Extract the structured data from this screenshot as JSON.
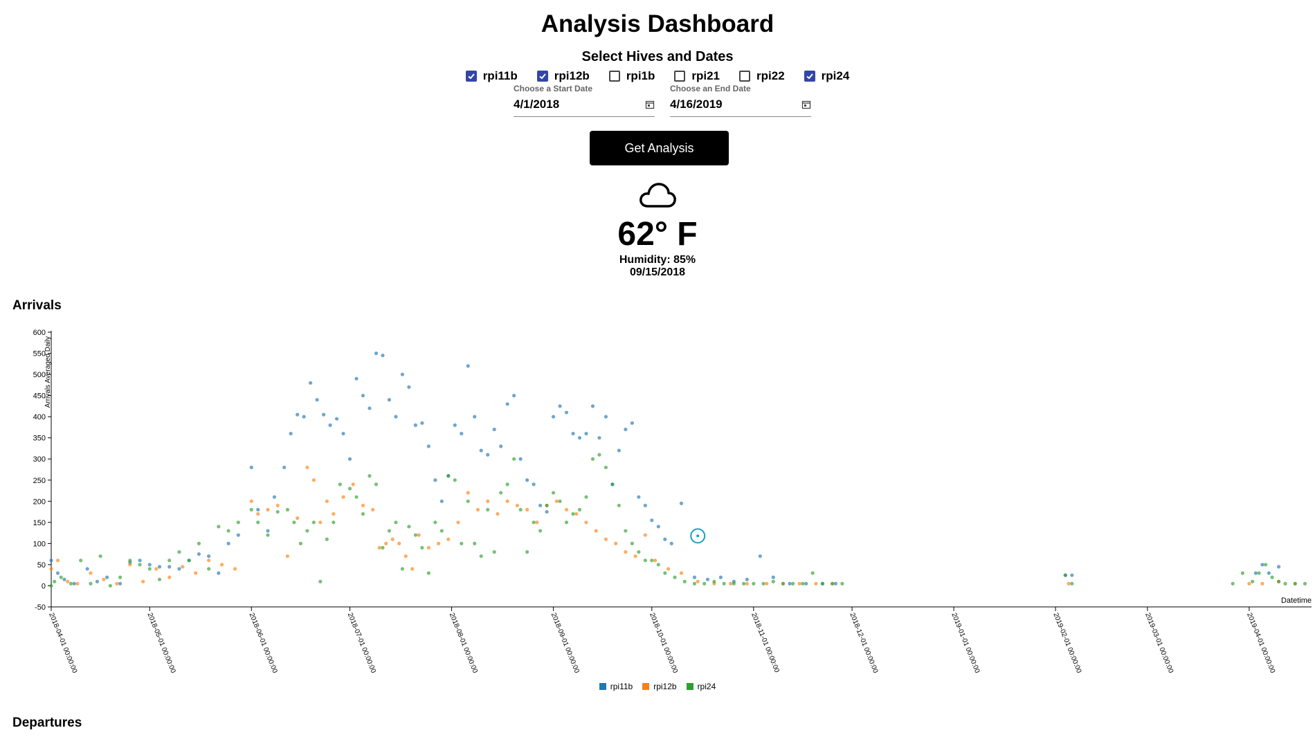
{
  "header": {
    "title": "Analysis Dashboard",
    "subtitle": "Select Hives and Dates"
  },
  "hives": [
    {
      "label": "rpi11b",
      "checked": true
    },
    {
      "label": "rpi12b",
      "checked": true
    },
    {
      "label": "rpi1b",
      "checked": false
    },
    {
      "label": "rpi21",
      "checked": false
    },
    {
      "label": "rpi22",
      "checked": false
    },
    {
      "label": "rpi24",
      "checked": true
    }
  ],
  "start_date": {
    "label": "Choose a Start Date",
    "value": "4/1/2018",
    "icon": "calendar-icon"
  },
  "end_date": {
    "label": "Choose an End Date",
    "value": "4/16/2019",
    "icon": "calendar-icon"
  },
  "actions": {
    "get_analysis": "Get Analysis"
  },
  "weather": {
    "icon": "cloud-icon",
    "temp": "62° F",
    "humidity": "Humidity: 85%",
    "date": "09/15/2018"
  },
  "sections": {
    "arrivals": "Arrivals",
    "departures": "Departures"
  },
  "colors": {
    "rpi11b": "#1f77b4",
    "rpi12b": "#ff7f0e",
    "rpi24": "#2ca02c",
    "checkbox": "#3346a8",
    "marker": "#17a2b8"
  },
  "chart_data": {
    "type": "scatter",
    "title": "",
    "ylabel": "Arrivals Averaged Daily",
    "xlabel": "Datetime",
    "ylim": [
      -50,
      600
    ],
    "yticks": [
      -50,
      0,
      50,
      100,
      150,
      200,
      250,
      300,
      350,
      400,
      450,
      500,
      550,
      600
    ],
    "xlim": [
      "2018-04-01",
      "2019-04-20"
    ],
    "xticks": [
      "2018-04-01 00:00:00",
      "2018-05-01 00:00:00",
      "2018-06-01 00:00:00",
      "2018-07-01 00:00:00",
      "2018-08-01 00:00:00",
      "2018-09-01 00:00:00",
      "2018-10-01 00:00:00",
      "2018-11-01 00:00:00",
      "2018-12-01 00:00:00",
      "2019-01-01 00:00:00",
      "2019-02-01 00:00:00",
      "2019-03-01 00:00:00",
      "2019-04-01 00:00:00"
    ],
    "legend_position": "bottom-center",
    "highlight": {
      "x": "2018-10-15",
      "y": 118
    },
    "series": [
      {
        "name": "rpi11b",
        "x": [
          "2018-04-01",
          "2018-04-03",
          "2018-04-05",
          "2018-04-08",
          "2018-04-12",
          "2018-04-15",
          "2018-04-18",
          "2018-04-22",
          "2018-04-25",
          "2018-04-28",
          "2018-05-01",
          "2018-05-04",
          "2018-05-07",
          "2018-05-10",
          "2018-05-13",
          "2018-05-16",
          "2018-05-19",
          "2018-05-22",
          "2018-05-25",
          "2018-05-28",
          "2018-06-01",
          "2018-06-03",
          "2018-06-06",
          "2018-06-08",
          "2018-06-11",
          "2018-06-13",
          "2018-06-15",
          "2018-06-17",
          "2018-06-19",
          "2018-06-21",
          "2018-06-23",
          "2018-06-25",
          "2018-06-27",
          "2018-06-29",
          "2018-07-01",
          "2018-07-03",
          "2018-07-05",
          "2018-07-07",
          "2018-07-09",
          "2018-07-11",
          "2018-07-13",
          "2018-07-15",
          "2018-07-17",
          "2018-07-19",
          "2018-07-21",
          "2018-07-23",
          "2018-07-25",
          "2018-07-27",
          "2018-07-29",
          "2018-07-31",
          "2018-08-02",
          "2018-08-04",
          "2018-08-06",
          "2018-08-08",
          "2018-08-10",
          "2018-08-12",
          "2018-08-14",
          "2018-08-16",
          "2018-08-18",
          "2018-08-20",
          "2018-08-22",
          "2018-08-24",
          "2018-08-26",
          "2018-08-28",
          "2018-08-30",
          "2018-09-01",
          "2018-09-03",
          "2018-09-05",
          "2018-09-07",
          "2018-09-09",
          "2018-09-11",
          "2018-09-13",
          "2018-09-15",
          "2018-09-17",
          "2018-09-19",
          "2018-09-21",
          "2018-09-23",
          "2018-09-25",
          "2018-09-27",
          "2018-09-29",
          "2018-10-01",
          "2018-10-03",
          "2018-10-05",
          "2018-10-07",
          "2018-10-10",
          "2018-10-14",
          "2018-10-18",
          "2018-10-22",
          "2018-10-26",
          "2018-10-30",
          "2018-11-03",
          "2018-11-07",
          "2018-11-12",
          "2018-11-17",
          "2018-11-22",
          "2018-11-26",
          "2019-02-04",
          "2019-02-06",
          "2019-04-03",
          "2019-04-05",
          "2019-04-07",
          "2019-04-10"
        ],
        "y": [
          60,
          30,
          15,
          5,
          40,
          10,
          20,
          5,
          55,
          60,
          50,
          45,
          45,
          40,
          60,
          75,
          70,
          30,
          100,
          120,
          280,
          180,
          130,
          210,
          280,
          360,
          405,
          400,
          480,
          440,
          405,
          380,
          395,
          360,
          300,
          490,
          450,
          420,
          550,
          545,
          440,
          400,
          500,
          470,
          380,
          385,
          330,
          250,
          200,
          260,
          380,
          360,
          520,
          400,
          320,
          310,
          370,
          330,
          430,
          450,
          300,
          250,
          240,
          190,
          175,
          400,
          425,
          410,
          360,
          350,
          360,
          425,
          350,
          400,
          240,
          320,
          370,
          385,
          210,
          190,
          155,
          140,
          110,
          100,
          195,
          20,
          15,
          20,
          10,
          15,
          70,
          20,
          5,
          5,
          5,
          5,
          25,
          25,
          30,
          50,
          30,
          45
        ]
      },
      {
        "name": "rpi12b",
        "x": [
          "2018-04-01",
          "2018-04-03",
          "2018-04-06",
          "2018-04-09",
          "2018-04-13",
          "2018-04-17",
          "2018-04-21",
          "2018-04-25",
          "2018-04-29",
          "2018-05-03",
          "2018-05-07",
          "2018-05-11",
          "2018-05-15",
          "2018-05-19",
          "2018-05-23",
          "2018-05-27",
          "2018-06-01",
          "2018-06-03",
          "2018-06-06",
          "2018-06-09",
          "2018-06-12",
          "2018-06-15",
          "2018-06-18",
          "2018-06-20",
          "2018-06-22",
          "2018-06-24",
          "2018-06-26",
          "2018-06-29",
          "2018-07-02",
          "2018-07-05",
          "2018-07-08",
          "2018-07-10",
          "2018-07-12",
          "2018-07-14",
          "2018-07-16",
          "2018-07-18",
          "2018-07-20",
          "2018-07-22",
          "2018-07-25",
          "2018-07-28",
          "2018-07-31",
          "2018-08-03",
          "2018-08-06",
          "2018-08-09",
          "2018-08-12",
          "2018-08-15",
          "2018-08-18",
          "2018-08-21",
          "2018-08-24",
          "2018-08-27",
          "2018-08-30",
          "2018-09-02",
          "2018-09-05",
          "2018-09-08",
          "2018-09-11",
          "2018-09-14",
          "2018-09-17",
          "2018-09-20",
          "2018-09-23",
          "2018-09-26",
          "2018-09-29",
          "2018-10-02",
          "2018-10-06",
          "2018-10-10",
          "2018-10-15",
          "2018-10-20",
          "2018-10-25",
          "2018-10-30",
          "2018-11-05",
          "2018-11-10",
          "2018-11-15",
          "2018-11-20",
          "2018-11-25",
          "2019-02-05",
          "2019-04-01",
          "2019-04-05",
          "2019-04-10",
          "2019-04-15"
        ],
        "y": [
          40,
          60,
          10,
          5,
          30,
          15,
          5,
          50,
          10,
          40,
          20,
          45,
          30,
          60,
          50,
          40,
          200,
          170,
          180,
          190,
          70,
          160,
          280,
          250,
          150,
          200,
          170,
          210,
          240,
          190,
          180,
          90,
          100,
          110,
          100,
          70,
          40,
          120,
          90,
          100,
          110,
          150,
          220,
          180,
          200,
          170,
          200,
          190,
          180,
          150,
          190,
          200,
          180,
          170,
          150,
          130,
          110,
          100,
          80,
          70,
          120,
          60,
          40,
          30,
          10,
          5,
          5,
          5,
          5,
          5,
          5,
          5,
          5,
          5,
          5,
          5,
          10,
          5
        ]
      },
      {
        "name": "rpi24",
        "x": [
          "2018-04-01",
          "2018-04-02",
          "2018-04-04",
          "2018-04-07",
          "2018-04-10",
          "2018-04-13",
          "2018-04-16",
          "2018-04-19",
          "2018-04-22",
          "2018-04-25",
          "2018-04-28",
          "2018-05-01",
          "2018-05-04",
          "2018-05-07",
          "2018-05-10",
          "2018-05-13",
          "2018-05-16",
          "2018-05-19",
          "2018-05-22",
          "2018-05-25",
          "2018-05-28",
          "2018-06-01",
          "2018-06-03",
          "2018-06-06",
          "2018-06-09",
          "2018-06-12",
          "2018-06-14",
          "2018-06-16",
          "2018-06-18",
          "2018-06-20",
          "2018-06-22",
          "2018-06-24",
          "2018-06-26",
          "2018-06-28",
          "2018-07-01",
          "2018-07-03",
          "2018-07-05",
          "2018-07-07",
          "2018-07-09",
          "2018-07-11",
          "2018-07-13",
          "2018-07-15",
          "2018-07-17",
          "2018-07-19",
          "2018-07-21",
          "2018-07-23",
          "2018-07-25",
          "2018-07-27",
          "2018-07-29",
          "2018-07-31",
          "2018-08-02",
          "2018-08-04",
          "2018-08-06",
          "2018-08-08",
          "2018-08-10",
          "2018-08-12",
          "2018-08-14",
          "2018-08-16",
          "2018-08-18",
          "2018-08-20",
          "2018-08-22",
          "2018-08-24",
          "2018-08-26",
          "2018-08-28",
          "2018-08-30",
          "2018-09-01",
          "2018-09-03",
          "2018-09-05",
          "2018-09-07",
          "2018-09-09",
          "2018-09-11",
          "2018-09-13",
          "2018-09-15",
          "2018-09-17",
          "2018-09-19",
          "2018-09-21",
          "2018-09-23",
          "2018-09-25",
          "2018-09-27",
          "2018-09-29",
          "2018-10-01",
          "2018-10-03",
          "2018-10-05",
          "2018-10-08",
          "2018-10-11",
          "2018-10-14",
          "2018-10-17",
          "2018-10-20",
          "2018-10-23",
          "2018-10-26",
          "2018-10-29",
          "2018-11-01",
          "2018-11-04",
          "2018-11-07",
          "2018-11-10",
          "2018-11-13",
          "2018-11-16",
          "2018-11-19",
          "2018-11-22",
          "2018-11-25",
          "2018-11-28",
          "2019-02-04",
          "2019-02-06",
          "2019-03-27",
          "2019-03-30",
          "2019-04-02",
          "2019-04-04",
          "2019-04-06",
          "2019-04-08",
          "2019-04-10",
          "2019-04-12",
          "2019-04-15",
          "2019-04-18"
        ],
        "y": [
          0,
          10,
          20,
          5,
          60,
          5,
          70,
          0,
          20,
          60,
          50,
          40,
          15,
          60,
          80,
          60,
          100,
          40,
          140,
          130,
          150,
          180,
          150,
          120,
          175,
          180,
          150,
          100,
          130,
          150,
          10,
          110,
          150,
          240,
          230,
          210,
          170,
          260,
          240,
          90,
          130,
          150,
          40,
          140,
          120,
          90,
          30,
          150,
          130,
          260,
          250,
          100,
          200,
          100,
          70,
          180,
          80,
          220,
          240,
          300,
          180,
          80,
          150,
          130,
          190,
          220,
          200,
          150,
          170,
          180,
          210,
          300,
          310,
          280,
          240,
          190,
          130,
          100,
          80,
          60,
          60,
          50,
          30,
          20,
          10,
          5,
          5,
          10,
          5,
          5,
          5,
          5,
          5,
          10,
          5,
          5,
          5,
          30,
          5,
          5,
          5,
          25,
          5,
          5,
          30,
          10,
          30,
          50,
          20,
          10,
          5,
          5,
          5
        ]
      }
    ]
  }
}
